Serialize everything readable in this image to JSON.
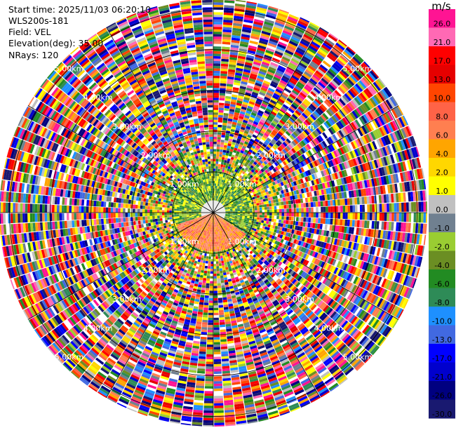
{
  "header": {
    "start_time": "Start time: 2025/11/03 06:20:10",
    "instrument": "WLS200s-181",
    "field": "Field: VEL",
    "elevation": "Elevation(deg): 35.00",
    "nrays": "NRays: 120"
  },
  "chart_data": {
    "type": "heatmap",
    "projection": "polar-ppi",
    "field": "VEL",
    "n_rays": 120,
    "max_range_km": 5.25,
    "range_rings_km": [
      1,
      2,
      3,
      4,
      5
    ],
    "ring_labels": [
      "1.00km",
      "2.00km",
      "3.00km",
      "4.00km",
      "5.00km"
    ],
    "spokes_deg": [
      0,
      30,
      60,
      90,
      120,
      150,
      180,
      210,
      240,
      270,
      300,
      330
    ],
    "colorbar": {
      "unit": "m/s",
      "ticks": [
        "26.0",
        "21.0",
        "17.0",
        "13.0",
        "10.0",
        "8.0",
        "6.0",
        "4.0",
        "2.0",
        "1.0",
        "0.0",
        "-1.0",
        "-2.0",
        "-4.0",
        "-6.0",
        "-8.0",
        "-10.0",
        "-13.0",
        "-17.0",
        "-21.0",
        "-26.0",
        "-30.0"
      ],
      "colors": [
        "#ff1493",
        "#ff69b4",
        "#ff0000",
        "#e60000",
        "#ff4500",
        "#ff6347",
        "#ff7f50",
        "#ffa500",
        "#ffd700",
        "#ffff00",
        "#c0c0c0",
        "#708090",
        "#9acd32",
        "#6b8e23",
        "#228b22",
        "#2e8b57",
        "#1e90ff",
        "#4169e1",
        "#0000ff",
        "#0000cd",
        "#000080",
        "#191970"
      ]
    }
  }
}
